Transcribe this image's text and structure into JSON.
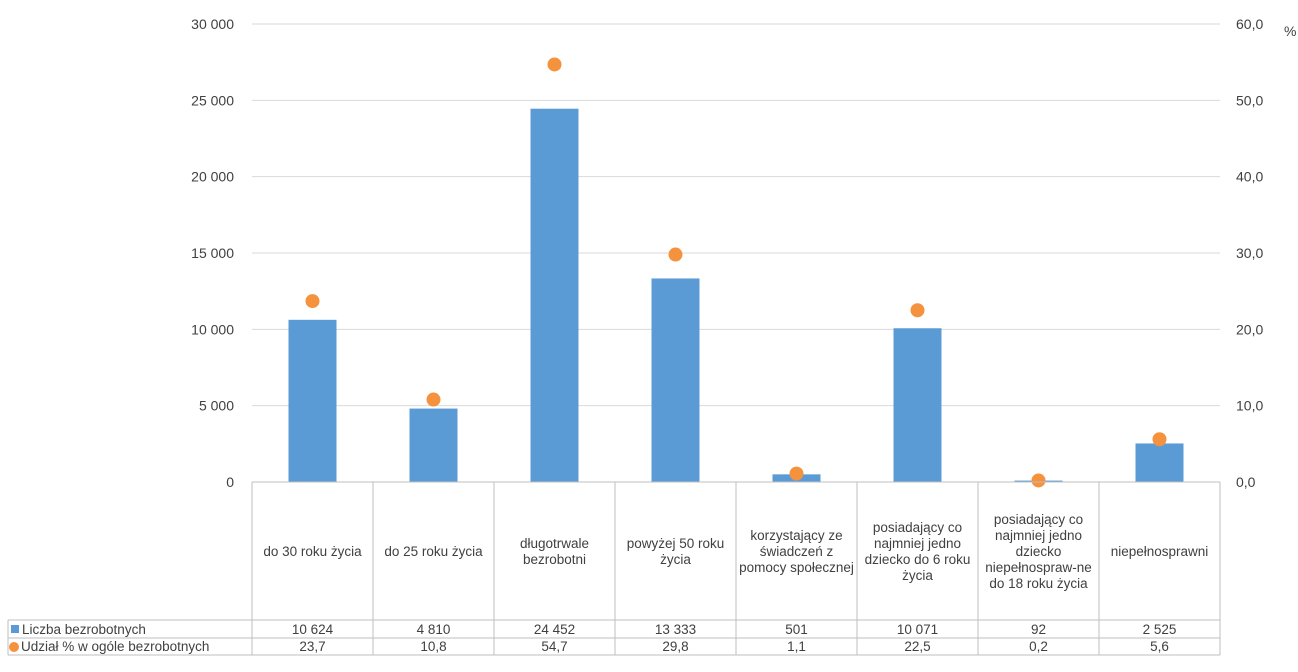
{
  "chart_data": {
    "type": "bar",
    "categories": [
      "do 30 roku życia",
      "do 25 roku życia",
      "długotrwale bezrobotni",
      "powyżej 50 roku życia",
      "korzystający ze świadczeń z pomocy społecznej",
      "posiadający co najmniej jedno dziecko do 6 roku życia",
      "posiadający co najmniej jedno dziecko niepełnospraw-ne do 18 roku życia",
      "niepełnosprawni"
    ],
    "series": [
      {
        "name": "Liczba bezrobotnych",
        "type": "bar",
        "axis": "left",
        "color": "#5b9bd5",
        "values": [
          10624,
          4810,
          24452,
          13333,
          501,
          10071,
          92,
          2525
        ],
        "labels": [
          "10 624",
          "4 810",
          "24 452",
          "13 333",
          "501",
          "10 071",
          "92",
          "2 525"
        ]
      },
      {
        "name": "Udział % w ogóle bezrobotnych",
        "type": "scatter",
        "axis": "right",
        "color": "#f5923e",
        "values": [
          23.7,
          10.8,
          54.7,
          29.8,
          1.1,
          22.5,
          0.2,
          5.6
        ],
        "labels": [
          "23,7",
          "10,8",
          "54,7",
          "29,8",
          "1,1",
          "22,5",
          "0,2",
          "5,6"
        ]
      }
    ],
    "ylim": [
      0,
      30000
    ],
    "y2lim": [
      0,
      60
    ],
    "y_ticks": [
      "0",
      "5 000",
      "10 000",
      "15 000",
      "20 000",
      "25 000",
      "30 000"
    ],
    "y2_ticks": [
      "0,0",
      "10,0",
      "20,0",
      "30,0",
      "40,0",
      "50,0",
      "60,0"
    ],
    "y2label": "%",
    "grid": true,
    "legend": "data-table"
  }
}
